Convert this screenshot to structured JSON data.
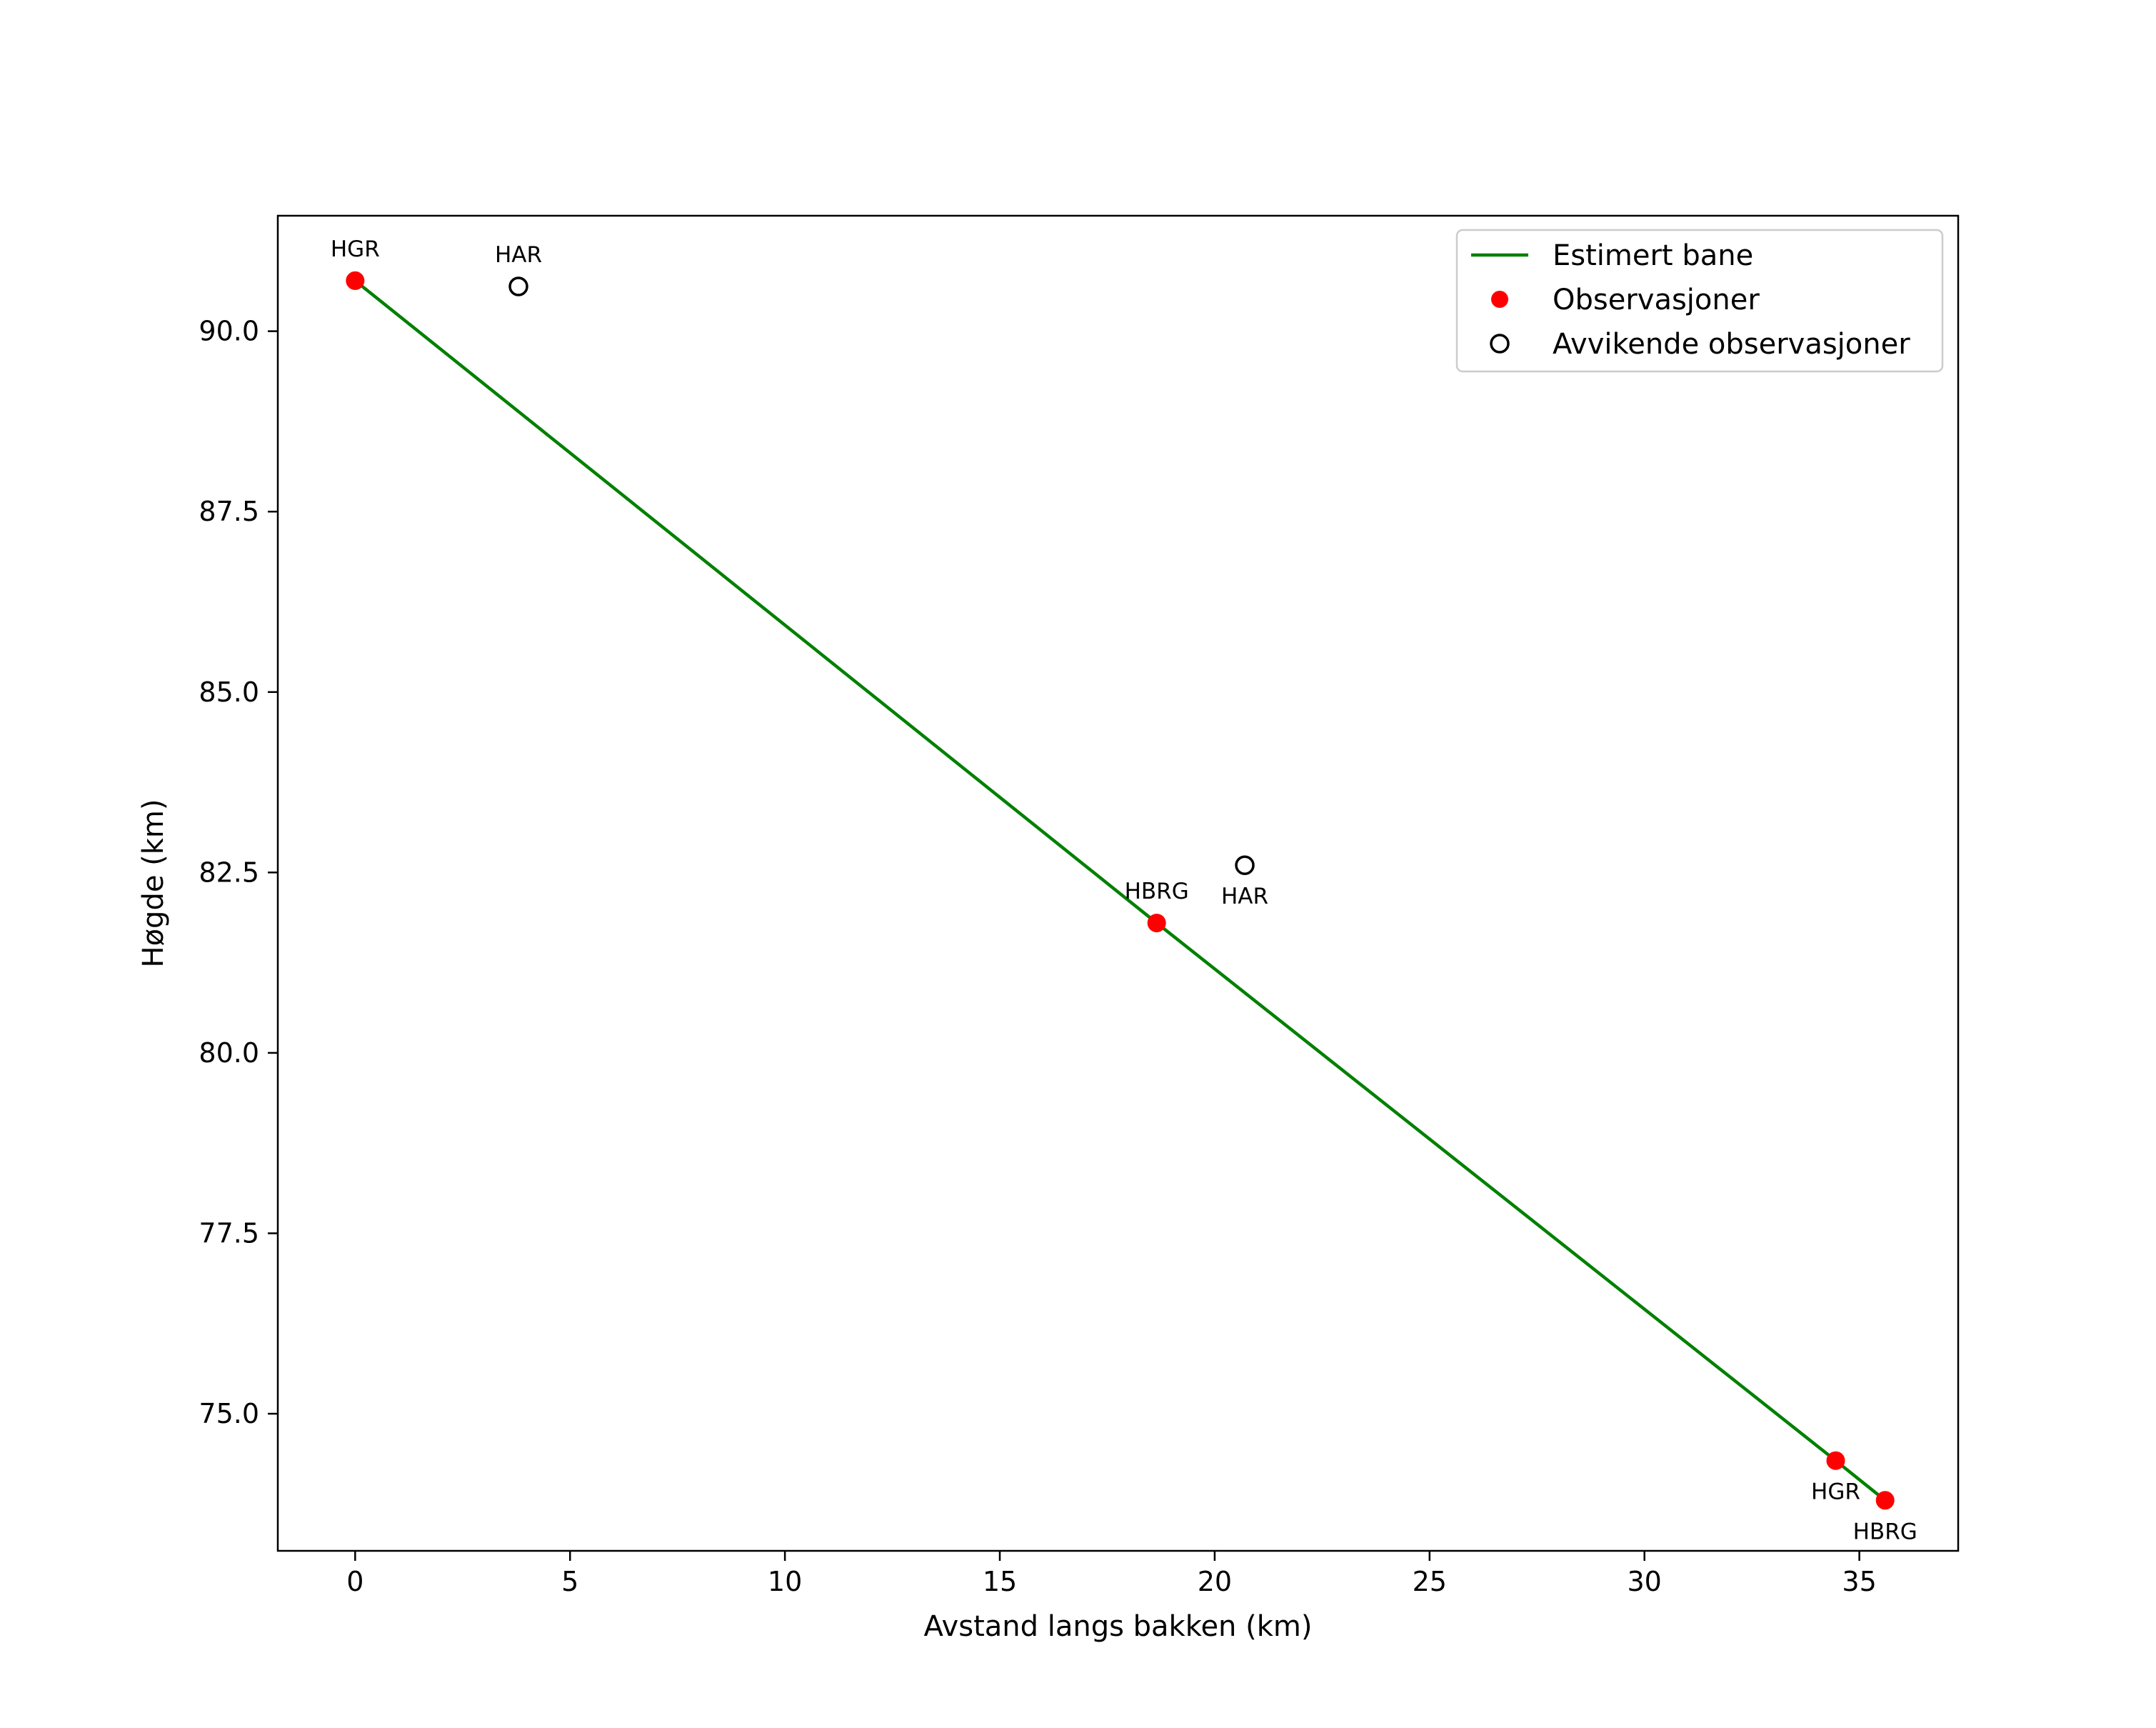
{
  "chart_data": {
    "type": "scatter",
    "title": "",
    "xlabel": "Avstand langs bakken (km)",
    "ylabel": "Høgde (km)",
    "xlim": [
      -1.8,
      37.3
    ],
    "ylim": [
      73.1,
      91.6
    ],
    "xticks": [
      {
        "value": 0,
        "label": "0"
      },
      {
        "value": 5,
        "label": "5"
      },
      {
        "value": 10,
        "label": "10"
      },
      {
        "value": 15,
        "label": "15"
      },
      {
        "value": 20,
        "label": "20"
      },
      {
        "value": 25,
        "label": "25"
      },
      {
        "value": 30,
        "label": "30"
      },
      {
        "value": 35,
        "label": "35"
      }
    ],
    "yticks": [
      {
        "value": 75.0,
        "label": "75.0"
      },
      {
        "value": 77.5,
        "label": "77.5"
      },
      {
        "value": 80.0,
        "label": "80.0"
      },
      {
        "value": 82.5,
        "label": "82.5"
      },
      {
        "value": 85.0,
        "label": "85.0"
      },
      {
        "value": 87.5,
        "label": "87.5"
      },
      {
        "value": 90.0,
        "label": "90.0"
      }
    ],
    "grid": false,
    "legend_position": "top-right",
    "legend": [
      {
        "label": "Estimert bane",
        "marker": "line",
        "color": "#008000"
      },
      {
        "label": "Observasjoner",
        "marker": "filled-circle",
        "color": "#ff0000"
      },
      {
        "label": "Avvikende observasjoner",
        "marker": "open-circle",
        "color": "#000000"
      }
    ],
    "series": [
      {
        "name": "Estimert bane",
        "kind": "line",
        "color": "#008000",
        "points": [
          {
            "x": 0.0,
            "y": 90.7
          },
          {
            "x": 18.65,
            "y": 81.8
          },
          {
            "x": 34.45,
            "y": 74.35
          },
          {
            "x": 35.6,
            "y": 73.8
          }
        ]
      },
      {
        "name": "Observasjoner",
        "kind": "filled-circle",
        "color": "#ff0000",
        "points": [
          {
            "x": 0.0,
            "y": 90.7,
            "label": "HGR",
            "label_pos": "above"
          },
          {
            "x": 18.65,
            "y": 81.8,
            "label": "HBRG",
            "label_pos": "above"
          },
          {
            "x": 34.45,
            "y": 74.35,
            "label": "HGR",
            "label_pos": "below"
          },
          {
            "x": 35.6,
            "y": 73.8,
            "label": "HBRG",
            "label_pos": "below"
          }
        ]
      },
      {
        "name": "Avvikende observasjoner",
        "kind": "open-circle",
        "color": "#000000",
        "points": [
          {
            "x": 3.8,
            "y": 90.62,
            "label": "HAR",
            "label_pos": "above"
          },
          {
            "x": 20.7,
            "y": 82.6,
            "label": "HAR",
            "label_pos": "below"
          }
        ]
      }
    ]
  }
}
